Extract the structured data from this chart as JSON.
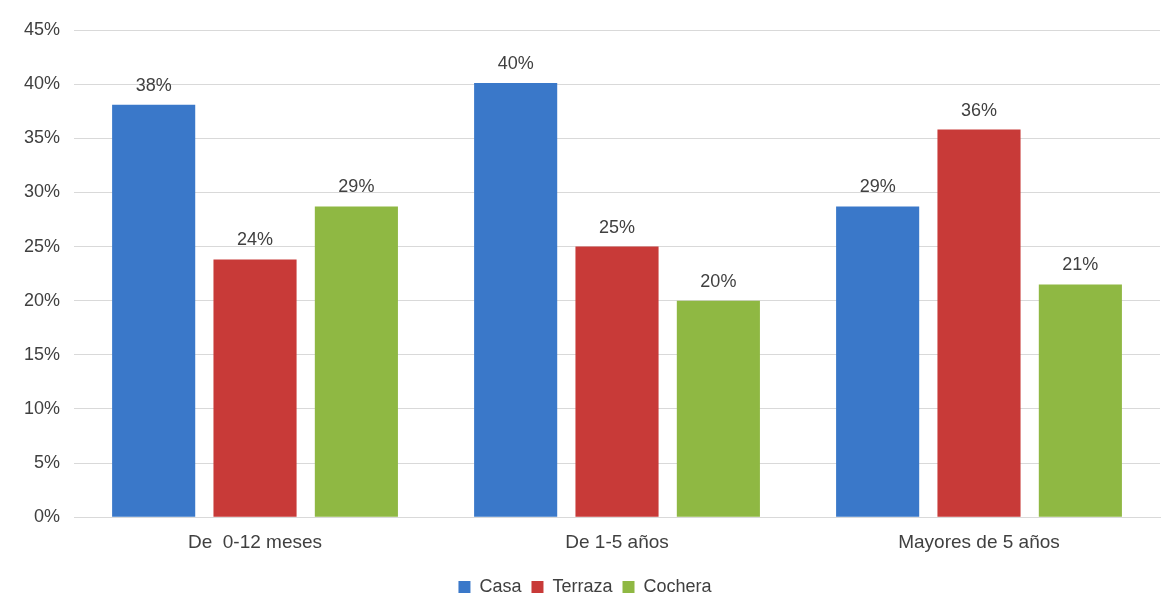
{
  "chart_data": {
    "type": "bar",
    "categories": [
      "De  0-12 meses",
      "De 1-5 años",
      "Mayores de 5 años"
    ],
    "series": [
      {
        "name": "Casa",
        "color": "#3a78c9",
        "values": [
          38.1,
          40.1,
          28.7
        ],
        "value_labels": [
          "38%",
          "40%",
          "29%"
        ]
      },
      {
        "name": "Terraza",
        "color": "#c83a38",
        "values": [
          23.8,
          25,
          35.8
        ],
        "value_labels": [
          "24%",
          "25%",
          "36%"
        ]
      },
      {
        "name": "Cochera",
        "color": "#8fb843",
        "values": [
          28.7,
          20,
          21.5
        ],
        "value_labels": [
          "29%",
          "20%",
          "21%"
        ]
      }
    ],
    "ylim": [
      0,
      45
    ],
    "yticks": [
      {
        "value": 0,
        "label": "0%"
      },
      {
        "value": 5,
        "label": "5%"
      },
      {
        "value": 10,
        "label": "10%"
      },
      {
        "value": 15,
        "label": "15%"
      },
      {
        "value": 20,
        "label": "20%"
      },
      {
        "value": 25,
        "label": "25%"
      },
      {
        "value": 30,
        "label": "30%"
      },
      {
        "value": 35,
        "label": "35%"
      },
      {
        "value": 40,
        "label": "40%"
      },
      {
        "value": 45,
        "label": "45%"
      }
    ],
    "grid": "y",
    "legend": "bottom"
  }
}
